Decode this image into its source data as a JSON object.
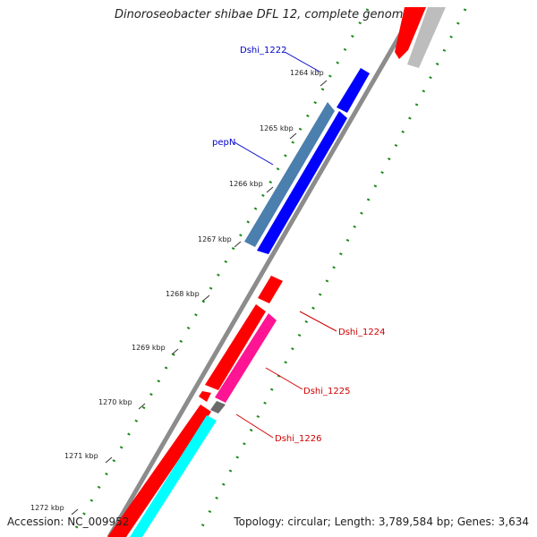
{
  "map": {
    "title": "Dinoroseobacter shibae DFL 12, complete genome",
    "accession_text": "Accession: NC_009952",
    "topology_text": "Topology: circular; Length: 3,789,584 bp; Genes: 3,634",
    "ticks": [
      "1264 kbp",
      "1265 kbp",
      "1266 kbp",
      "1267 kbp",
      "1268 kbp",
      "1269 kbp",
      "1270 kbp",
      "1271 kbp",
      "1272 kbp"
    ],
    "gene_labels": {
      "dshi_1222": "Dshi_1222",
      "pepN": "pepN",
      "dshi_1224": "Dshi_1224",
      "dshi_1225": "Dshi_1225",
      "dshi_1226": "Dshi_1226"
    },
    "colors": {
      "backbone": "#8c8c8c",
      "forward_gene": "#ff0000",
      "reverse_gene": "#0000ff",
      "steelblue_feature": "#4a7fae",
      "magenta_feature": "#ff1493",
      "cyan_feature": "#00ffff",
      "grey_feature": "#bdbdbd",
      "dark_grey_feature": "#6a6a6a",
      "tick_dots": "#1a8a1a",
      "label_blue": "#0000c8",
      "label_red": "#d00000"
    }
  }
}
